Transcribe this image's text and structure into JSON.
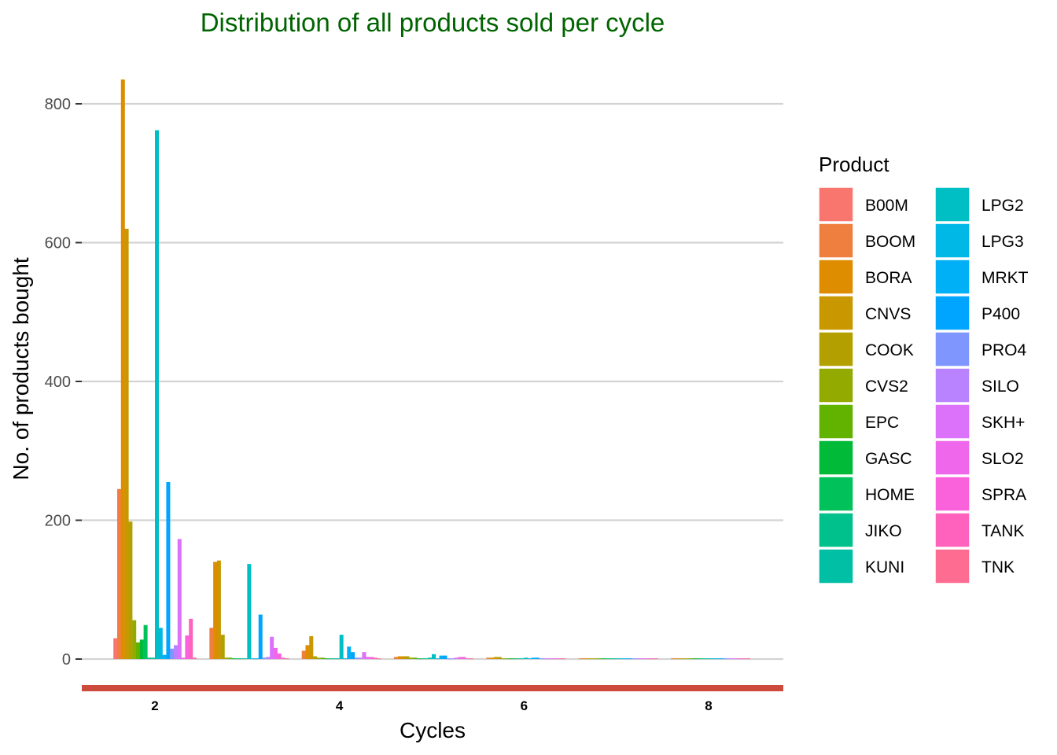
{
  "chart_data": {
    "type": "bar",
    "title": "Distribution of all products sold per cycle",
    "title_color": "#006400",
    "xlabel": "Cycles",
    "ylabel": "No. of products bought",
    "x_ticks": [
      2,
      4,
      6,
      8
    ],
    "y_ticks": [
      0,
      200,
      400,
      600,
      800
    ],
    "xlim": [
      1.2,
      8.8
    ],
    "ylim": [
      -40,
      850
    ],
    "grid": "horizontal major",
    "legend_title": "Product",
    "legend_position": "right",
    "x_axis_line_color": "#cd4b3c",
    "x": [
      2,
      3,
      4,
      5,
      6,
      7,
      8
    ],
    "series": [
      {
        "name": "B00M",
        "color": "#F8766D",
        "values": [
          30,
          0,
          0,
          0,
          0,
          0,
          0
        ]
      },
      {
        "name": "BOOM",
        "color": "#EF7F3E",
        "values": [
          245,
          45,
          12,
          3,
          2,
          1,
          1
        ]
      },
      {
        "name": "BORA",
        "color": "#DE8C00",
        "values": [
          835,
          140,
          20,
          4,
          2,
          1,
          1
        ]
      },
      {
        "name": "CNVS",
        "color": "#C99800",
        "values": [
          620,
          142,
          33,
          4,
          3,
          1,
          1
        ]
      },
      {
        "name": "COOK",
        "color": "#B3A000",
        "values": [
          198,
          35,
          4,
          4,
          3,
          1,
          1
        ]
      },
      {
        "name": "CVS2",
        "color": "#93AA00",
        "values": [
          56,
          2,
          2,
          2,
          1,
          1,
          1
        ]
      },
      {
        "name": "EPC",
        "color": "#62B200",
        "values": [
          24,
          2,
          2,
          2,
          1,
          1,
          1
        ]
      },
      {
        "name": "GASC",
        "color": "#00BA38",
        "values": [
          28,
          1,
          1,
          1,
          1,
          1,
          1
        ]
      },
      {
        "name": "HOME",
        "color": "#00C15A",
        "values": [
          49,
          1,
          1,
          1,
          1,
          1,
          1
        ]
      },
      {
        "name": "JIKO",
        "color": "#00C08B",
        "values": [
          2,
          1,
          1,
          1,
          1,
          1,
          1
        ]
      },
      {
        "name": "KUNI",
        "color": "#00BFA4",
        "values": [
          2,
          1,
          1,
          2,
          1,
          1,
          1
        ]
      },
      {
        "name": "LPG2",
        "color": "#00BFC4",
        "values": [
          762,
          137,
          35,
          7,
          2,
          1,
          1
        ]
      },
      {
        "name": "LPG3",
        "color": "#00B8E5",
        "values": [
          45,
          1,
          1,
          1,
          1,
          1,
          1
        ]
      },
      {
        "name": "MRKT",
        "color": "#00B0F6",
        "values": [
          6,
          1,
          18,
          5,
          2,
          1,
          1
        ]
      },
      {
        "name": "P400",
        "color": "#00A5FF",
        "values": [
          255,
          64,
          10,
          5,
          2,
          1,
          1
        ]
      },
      {
        "name": "PRO4",
        "color": "#7F96FF",
        "values": [
          15,
          2,
          2,
          1,
          1,
          1,
          1
        ]
      },
      {
        "name": "SILO",
        "color": "#B983FF",
        "values": [
          20,
          3,
          2,
          1,
          1,
          1,
          1
        ]
      },
      {
        "name": "SKH+",
        "color": "#DC71FA",
        "values": [
          173,
          32,
          10,
          2,
          1,
          1,
          1
        ]
      },
      {
        "name": "SLO2",
        "color": "#EF67EB",
        "values": [
          2,
          16,
          3,
          3,
          1,
          1,
          1
        ]
      },
      {
        "name": "SPRA",
        "color": "#FA62DB",
        "values": [
          34,
          8,
          3,
          3,
          1,
          1,
          1
        ]
      },
      {
        "name": "TANK",
        "color": "#FF62BC",
        "values": [
          58,
          2,
          2,
          1,
          1,
          1,
          1
        ]
      },
      {
        "name": "TNK",
        "color": "#FF6C91",
        "values": [
          2,
          1,
          1,
          1,
          1,
          1,
          1
        ]
      }
    ]
  }
}
